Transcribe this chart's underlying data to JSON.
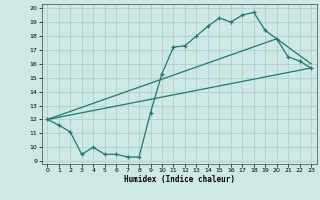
{
  "xlabel": "Humidex (Indice chaleur)",
  "xlim": [
    -0.5,
    23.5
  ],
  "ylim": [
    8.8,
    20.3
  ],
  "yticks": [
    9,
    10,
    11,
    12,
    13,
    14,
    15,
    16,
    17,
    18,
    19,
    20
  ],
  "xticks": [
    0,
    1,
    2,
    3,
    4,
    5,
    6,
    7,
    8,
    9,
    10,
    11,
    12,
    13,
    14,
    15,
    16,
    17,
    18,
    19,
    20,
    21,
    22,
    23
  ],
  "background_color": "#cde8e5",
  "grid_color": "#a8ceca",
  "line_color": "#1e7a6e",
  "line1_x": [
    0,
    1,
    2,
    3,
    4,
    5,
    6,
    7,
    8,
    9,
    10,
    11,
    12,
    13,
    14,
    15,
    16,
    17,
    18,
    19,
    20,
    21,
    22,
    23
  ],
  "line1_y": [
    12.0,
    11.6,
    11.1,
    9.5,
    10.0,
    9.5,
    9.5,
    9.3,
    9.3,
    12.5,
    15.3,
    17.2,
    17.3,
    18.0,
    18.7,
    19.3,
    19.0,
    19.5,
    19.7,
    18.4,
    17.8,
    16.5,
    16.2,
    15.7
  ],
  "line2_x": [
    0,
    23
  ],
  "line2_y": [
    12.0,
    15.7
  ],
  "line3_x": [
    0,
    20,
    23
  ],
  "line3_y": [
    12.0,
    17.8,
    16.0
  ]
}
